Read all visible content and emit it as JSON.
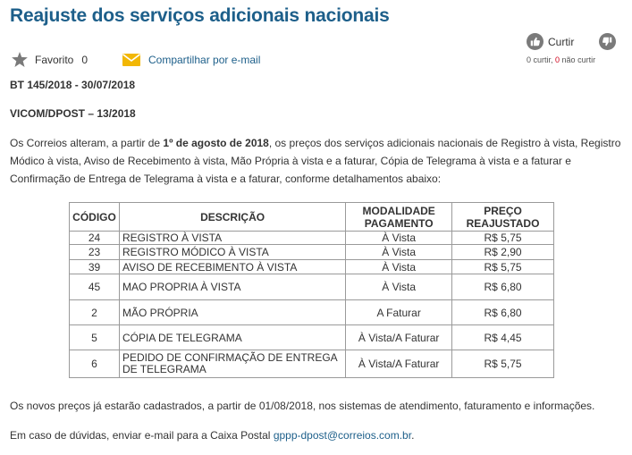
{
  "title": "Reajuste dos serviços adicionais nacionais",
  "favorite": {
    "label": "Favorito",
    "count": "0",
    "icon": "star-icon"
  },
  "share": {
    "label": "Compartilhar por e-mail",
    "icon": "envelope-icon"
  },
  "like": {
    "label": "Curtir",
    "like_count": "0",
    "like_text": " curtir, ",
    "dislike_count": "0",
    "dislike_text": " não curtir"
  },
  "bt_ref": "BT 145/2018 - 30/07/2018",
  "vicom_ref": "VICOM/DPOST – 13/2018",
  "intro": {
    "part1": "Os Correios alteram, a partir de ",
    "date_bold": "1º de agosto de 2018",
    "part2": ", os preços dos serviços adicionais nacionais de Registro à vista, Registro Módico à vista, Aviso de Recebimento à vista, Mão Própria à vista e a faturar, Cópia de Telegrama à vista e a faturar e Confirmação de Entrega de Telegrama à vista e a faturar, conforme detalhamentos abaixo:"
  },
  "table": {
    "headers": [
      "CÓDIGO",
      "DESCRIÇÃO",
      "MODALIDADE PAGAMENTO",
      "PREÇO REAJUSTADO"
    ],
    "rows": [
      {
        "code": "24",
        "desc": "REGISTRO À VISTA",
        "mode": "À Vista",
        "price": "R$ 5,75"
      },
      {
        "code": "23",
        "desc": "REGISTRO MÓDICO À VISTA",
        "mode": "À Vista",
        "price": "R$ 2,90"
      },
      {
        "code": "39",
        "desc": "AVISO DE RECEBIMENTO À VISTA",
        "mode": "À Vista",
        "price": "R$ 5,75"
      },
      {
        "code": "45",
        "desc": "MAO PROPRIA À VISTA",
        "mode": "À Vista",
        "price": "R$ 6,80"
      },
      {
        "code": "2",
        "desc": "MÃO PRÓPRIA",
        "mode": "A Faturar",
        "price": "R$ 6,80"
      },
      {
        "code": "5",
        "desc": "CÓPIA DE TELEGRAMA",
        "mode": "À Vista/A Faturar",
        "price": "R$ 4,45"
      },
      {
        "code": "6",
        "desc": "PEDIDO DE CONFIRMAÇÃO DE ENTREGA DE TELEGRAMA",
        "mode": "À Vista/A Faturar",
        "price": "R$ 5,75"
      }
    ]
  },
  "outro1": "Os novos preços já estarão cadastrados, a partir de 01/08/2018, nos sistemas de atendimento, faturamento e informações.",
  "outro2": {
    "text": "Em caso de dúvidas, enviar e-mail para a Caixa Postal ",
    "email": "gppp-dpost@correios.com.br",
    "end": "."
  },
  "colors": {
    "title": "#1d5f8a",
    "link": "#1d5f8a",
    "icon_gray": "#7a7a7a",
    "envelope": "#f2b705",
    "count_red": "#d0021b"
  }
}
